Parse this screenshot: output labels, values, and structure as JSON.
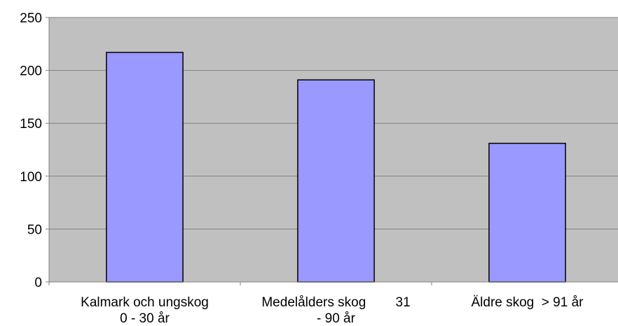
{
  "chart_data": {
    "type": "bar",
    "categories": [
      [
        "Kalmark och ungskog",
        "0 - 30 år"
      ],
      [
        "Medelålders skog        31",
        "- 90 år"
      ],
      [
        "Äldre skog  > 91 år"
      ]
    ],
    "values": [
      217,
      191,
      131
    ],
    "ylim": [
      0,
      250
    ],
    "yticks": [
      0,
      50,
      100,
      150,
      200,
      250
    ],
    "grid": true,
    "legend": "none",
    "title": "",
    "xlabel": "",
    "ylabel": ""
  },
  "colors": {
    "plot_background": "#c0c0c0",
    "bar_fill": "#9999ff",
    "bar_stroke": "#000000",
    "grid_line": "#808080",
    "axis_line": "#808080"
  }
}
